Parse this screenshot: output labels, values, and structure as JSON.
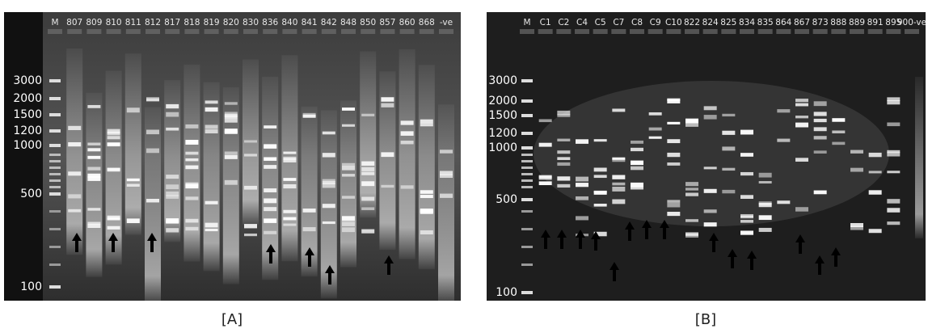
{
  "panels": [
    {
      "label": "[A]",
      "lanes": [
        "M",
        "807",
        "809",
        "810",
        "811",
        "812",
        "817",
        "818",
        "819",
        "820",
        "830",
        "836",
        "840",
        "841",
        "842",
        "848",
        "850",
        "857",
        "860",
        "868",
        "-ve"
      ],
      "markers": [
        "3000",
        "2000",
        "1500",
        "1200",
        "1000",
        "500",
        "100"
      ]
    },
    {
      "label": "[B]",
      "lanes": [
        "M",
        "C1",
        "C2",
        "C4",
        "C5",
        "C7",
        "C8",
        "C9",
        "C10",
        "822",
        "824",
        "825",
        "834",
        "835",
        "864",
        "867",
        "873",
        "888",
        "889",
        "891",
        "895",
        "900-ve"
      ],
      "markers": [
        "3000",
        "2000",
        "1500",
        "1200",
        "1000",
        "500",
        "100"
      ]
    }
  ]
}
